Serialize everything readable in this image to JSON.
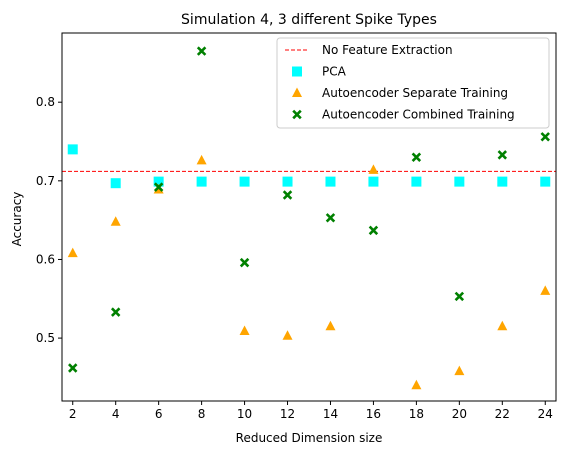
{
  "chart_data": {
    "type": "scatter",
    "title": "Simulation 4, 3 different Spike Types",
    "xlabel": "Reduced Dimension size",
    "ylabel": "Accuracy",
    "x": [
      2,
      4,
      6,
      8,
      10,
      12,
      14,
      16,
      18,
      20,
      22,
      24
    ],
    "xticks": [
      "2",
      "4",
      "6",
      "8",
      "10",
      "12",
      "14",
      "16",
      "18",
      "20",
      "22",
      "24"
    ],
    "yticks": [
      "0.5",
      "0.6",
      "0.7",
      "0.8"
    ],
    "xlim": [
      1.5,
      24.5
    ],
    "ylim": [
      0.42,
      0.888
    ],
    "grid": false,
    "legend_position": "top-right",
    "reference_line": {
      "name": "No Feature Extraction",
      "y": 0.712,
      "color": "#ff0000",
      "style": "dashed"
    },
    "series": [
      {
        "name": "PCA",
        "marker": "square",
        "color": "#00ffff",
        "values": [
          0.74,
          0.697,
          0.699,
          0.699,
          0.699,
          0.699,
          0.699,
          0.699,
          0.699,
          0.699,
          0.699,
          0.699
        ]
      },
      {
        "name": "Autoencoder Separate Training",
        "marker": "triangle",
        "color": "#ffa500",
        "values": [
          0.608,
          0.648,
          0.689,
          0.726,
          0.509,
          0.503,
          0.515,
          0.714,
          0.44,
          0.458,
          0.515,
          0.56
        ]
      },
      {
        "name": "Autoencoder Combined Training",
        "marker": "x",
        "color": "#008000",
        "values": [
          0.462,
          0.533,
          0.692,
          0.865,
          0.596,
          0.682,
          0.653,
          0.637,
          0.73,
          0.553,
          0.733,
          0.756
        ]
      }
    ]
  }
}
